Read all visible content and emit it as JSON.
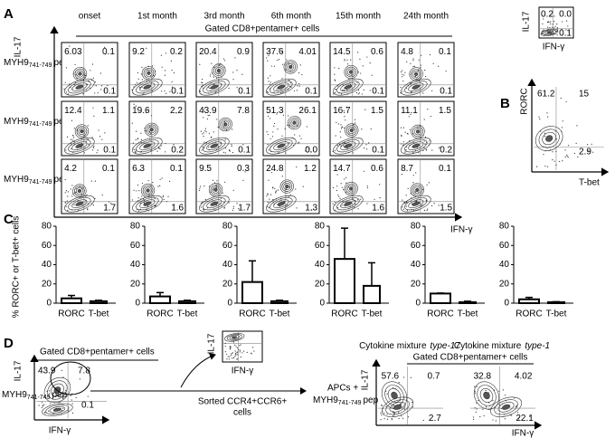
{
  "panel_letters": {
    "a": "A",
    "b": "B",
    "c": "C",
    "d": "D"
  },
  "panel_a": {
    "columns": [
      "onset",
      "1st month",
      "3rd month",
      "6th month",
      "15th month",
      "24th month"
    ],
    "gate": "Gated  CD8+pentamer+ cells",
    "y_axis": "IL-17",
    "x_axis": "IFN-γ",
    "rows": [
      {
        "label": {
          "name": "MYH9",
          "sub": "741-749",
          "suffix": "pep."
        },
        "plots": [
          [
            "6.03",
            "0.1",
            "0.1"
          ],
          [
            "9.2",
            "0.2",
            "0.1"
          ],
          [
            "20.4",
            "0.9",
            "0.1"
          ],
          [
            "37.6",
            "4.01",
            "0.1"
          ],
          [
            "14.5",
            "0.6",
            "0.1"
          ],
          [
            "4.8",
            "0.1",
            "0.1"
          ]
        ]
      },
      {
        "label": {
          "name": "MYH9",
          "sub": "741-749",
          "suffix": "pep."
        },
        "plots": [
          [
            "12.4",
            "1.1",
            "0.1"
          ],
          [
            "19.6",
            "2.2",
            "0.2"
          ],
          [
            "43.9",
            "7.8",
            "0.1"
          ],
          [
            "51.3",
            "26.1",
            "0.0"
          ],
          [
            "16.7",
            "1.5",
            "0.1"
          ],
          [
            "11.1",
            "1.5",
            "0.2"
          ]
        ]
      },
      {
        "label": {
          "name": "MYH9",
          "sub": "741-749",
          "suffix": "pep."
        },
        "plots": [
          [
            "4.2",
            "0.1",
            "1.7"
          ],
          [
            "6.3",
            "0.1",
            "1.6"
          ],
          [
            "9.5",
            "0.3",
            "1.7"
          ],
          [
            "24.8",
            "1.2",
            "1.3"
          ],
          [
            "14.7",
            "0.6",
            "1.6"
          ],
          [
            "8.7",
            "0.1",
            "1.5"
          ]
        ]
      }
    ]
  },
  "inset": {
    "y_axis": "IL-17",
    "x_axis": "IFN-γ",
    "quadrants": [
      "0.2",
      "0.0",
      "0.1"
    ]
  },
  "panel_b": {
    "y_axis": "RORC",
    "x_axis": "T-bet",
    "quadrants": [
      "61.2",
      "15",
      "2.9"
    ]
  },
  "panel_c": {
    "y_axis": "% RORC+ or T-bet+ cells",
    "charts": [
      {
        "categories": [
          "RORC",
          "T-bet"
        ],
        "values": [
          5,
          2
        ],
        "errors": [
          3,
          1
        ],
        "ylim": [
          0,
          80
        ],
        "yticks": [
          0,
          20,
          40,
          60,
          80
        ]
      },
      {
        "categories": [
          "RORC",
          "T-bet"
        ],
        "values": [
          7,
          2
        ],
        "errors": [
          4,
          1
        ],
        "ylim": [
          0,
          80
        ],
        "yticks": [
          0,
          20,
          40,
          60,
          80
        ]
      },
      {
        "categories": [
          "RORC",
          "T-bet"
        ],
        "values": [
          22,
          2
        ],
        "errors": [
          22,
          1
        ],
        "ylim": [
          0,
          80
        ],
        "yticks": [
          0,
          20,
          40,
          60,
          80
        ]
      },
      {
        "categories": [
          "RORC",
          "T-bet"
        ],
        "values": [
          46,
          18
        ],
        "errors": [
          32,
          24
        ],
        "ylim": [
          0,
          80
        ],
        "yticks": [
          0,
          20,
          40,
          60,
          80
        ]
      },
      {
        "categories": [
          "RORC",
          "T-bet"
        ],
        "values": [
          10,
          1
        ],
        "errors": [
          0.5,
          1
        ],
        "ylim": [
          0,
          80
        ],
        "yticks": [
          0,
          20,
          40,
          60,
          80
        ]
      },
      {
        "categories": [
          "RORC",
          "T-bet"
        ],
        "values": [
          4,
          1
        ],
        "errors": [
          2,
          0.5
        ],
        "ylim": [
          0,
          80
        ],
        "yticks": [
          0,
          20,
          40,
          60,
          80
        ]
      }
    ]
  },
  "panel_d": {
    "gate": "Gated CD8+pentamer+ cells",
    "y_axis": "IL-17",
    "x_axis": "IFN-γ",
    "peptide": {
      "name": "MYH9",
      "sub": "741-749",
      "suffix": "pep"
    },
    "quadrants": [
      "43.9",
      "7.8",
      "0.1"
    ],
    "sorted_plot": {
      "y_axis": "IL-17",
      "x_axis": "IFN-γ"
    },
    "sorted_label": [
      "Sorted CCR4+CCR6+",
      "cells"
    ],
    "apcs": {
      "line1": "APCs +",
      "peptide": {
        "name": "MYH9",
        "sub": "741-749",
        "suffix": "pep"
      }
    },
    "conditions": [
      {
        "label": {
          "text": "Cytokine mixture",
          "emph": "type-17"
        },
        "quadrants": [
          "57.6",
          "0.7",
          "2.7"
        ]
      },
      {
        "label": {
          "text": "Cytokine mixture",
          "emph": "type-1"
        },
        "quadrants": [
          "32.8",
          "4.02",
          "22.1"
        ]
      }
    ],
    "gate_right": "Gated   CD8+pentamer+ cells",
    "y_axis_right": "IL-17",
    "x_axis_right": "IFN-γ"
  }
}
